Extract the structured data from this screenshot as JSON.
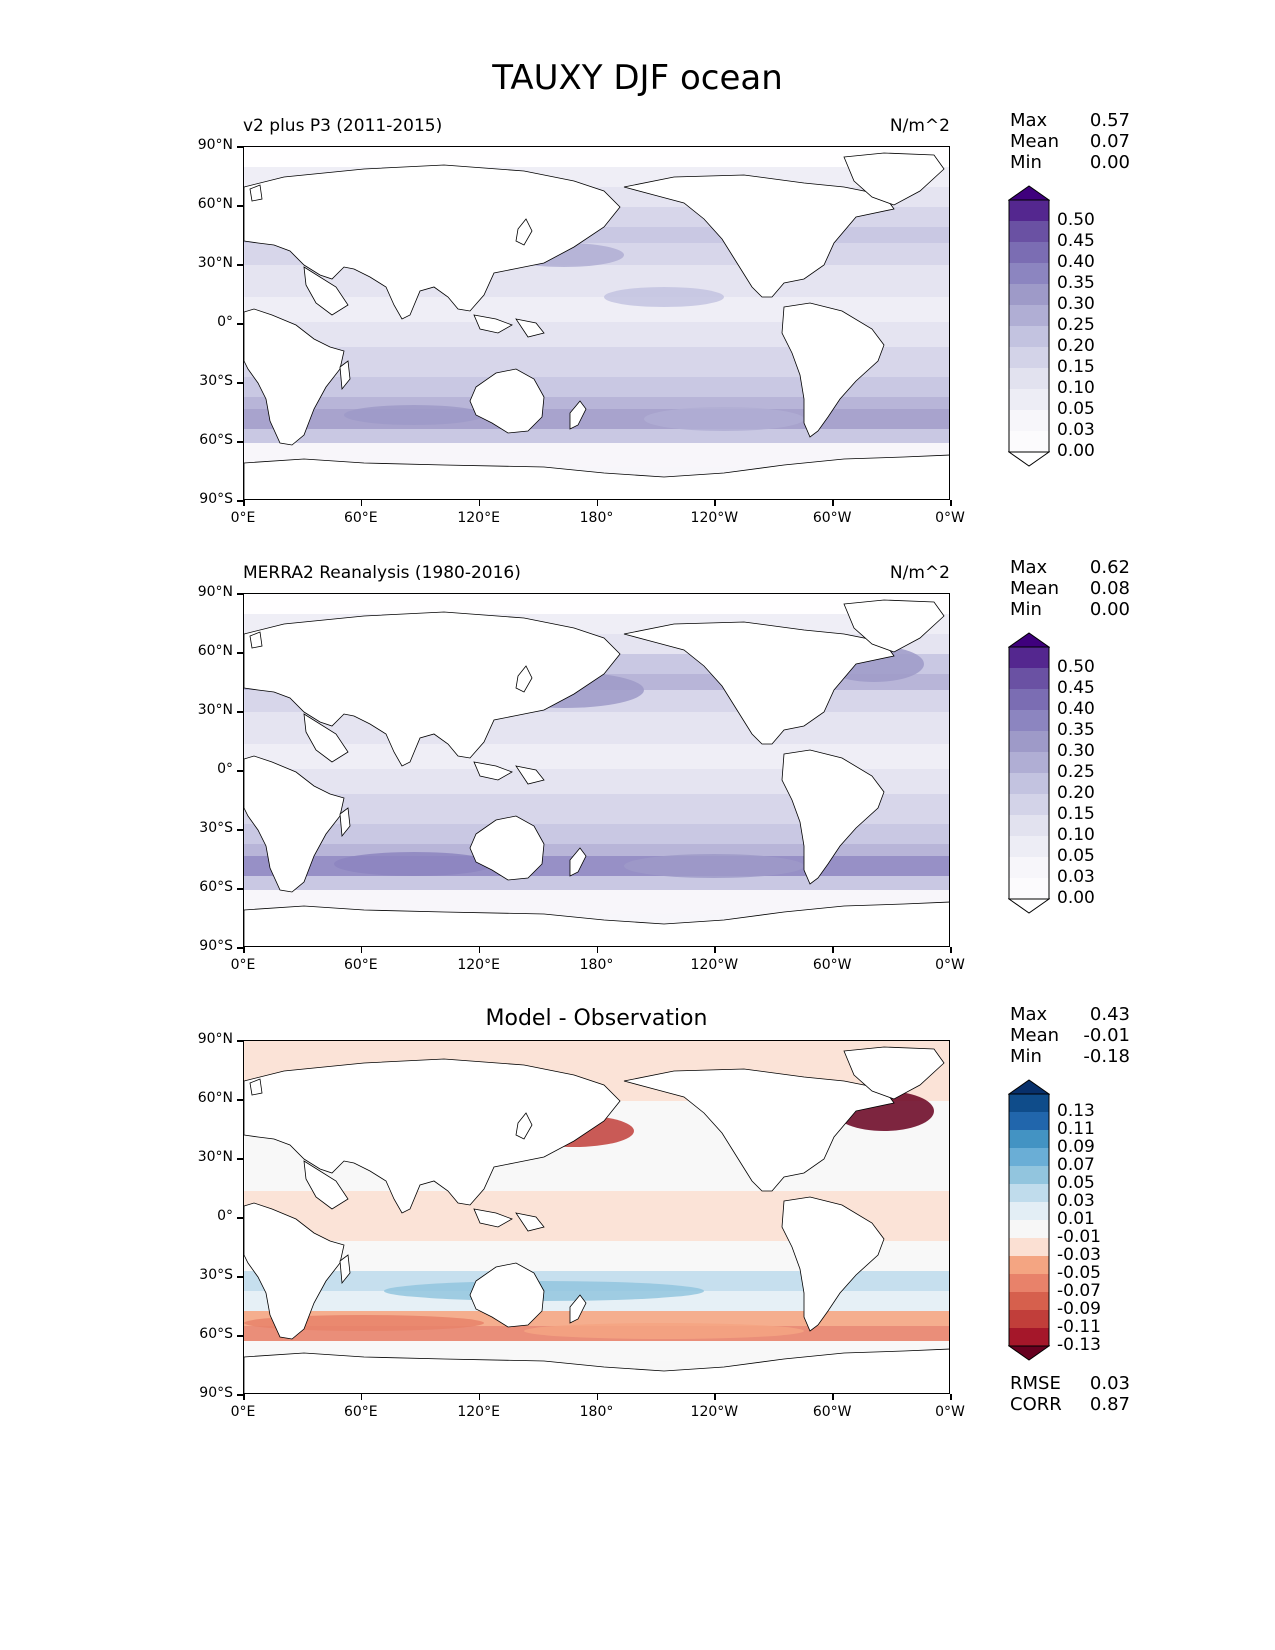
{
  "title": "TAUXY DJF ocean",
  "xticks": [
    "0°E",
    "60°E",
    "120°E",
    "180°",
    "120°W",
    "60°W",
    "0°W"
  ],
  "yticks": [
    "90°N",
    "60°N",
    "30°N",
    "0°",
    "30°S",
    "60°S",
    "90°S"
  ],
  "panels": [
    {
      "id": "test",
      "title_left": "v2 plus P3 (2011-2015)",
      "title_right": "N/m^2",
      "title_center": "",
      "stats": [
        {
          "label": "Max",
          "value": "0.57"
        },
        {
          "label": "Mean",
          "value": "0.07"
        },
        {
          "label": "Min",
          "value": "0.00"
        }
      ],
      "colorbar": {
        "labels": [
          "0.50",
          "0.45",
          "0.40",
          "0.35",
          "0.30",
          "0.25",
          "0.20",
          "0.15",
          "0.10",
          "0.05",
          "0.03",
          "0.00"
        ],
        "colors": [
          "#3f007d",
          "#54278f",
          "#6a51a3",
          "#7b6db3",
          "#8c85c0",
          "#9e9ac8",
          "#b0aed4",
          "#c3c3e0",
          "#d3d3e8",
          "#e2e2ef",
          "#ededf5",
          "#f7f6fa",
          "#fcfbfd",
          "#ffffff"
        ]
      }
    },
    {
      "id": "reference",
      "title_left": "MERRA2 Reanalysis (1980-2016)",
      "title_right": "N/m^2",
      "title_center": "",
      "stats": [
        {
          "label": "Max",
          "value": "0.62"
        },
        {
          "label": "Mean",
          "value": "0.08"
        },
        {
          "label": "Min",
          "value": "0.00"
        }
      ],
      "colorbar": {
        "labels": [
          "0.50",
          "0.45",
          "0.40",
          "0.35",
          "0.30",
          "0.25",
          "0.20",
          "0.15",
          "0.10",
          "0.05",
          "0.03",
          "0.00"
        ],
        "colors": [
          "#3f007d",
          "#54278f",
          "#6a51a3",
          "#7b6db3",
          "#8c85c0",
          "#9e9ac8",
          "#b0aed4",
          "#c3c3e0",
          "#d3d3e8",
          "#e2e2ef",
          "#ededf5",
          "#f7f6fa",
          "#fcfbfd",
          "#ffffff"
        ]
      }
    },
    {
      "id": "diff",
      "title_left": "",
      "title_right": "",
      "title_center": "Model - Observation",
      "stats": [
        {
          "label": "Max",
          "value": "0.43"
        },
        {
          "label": "Mean",
          "value": "-0.01"
        },
        {
          "label": "Min",
          "value": "-0.18"
        }
      ],
      "bottom_stats": [
        {
          "label": "RMSE",
          "value": "0.03"
        },
        {
          "label": "CORR",
          "value": "0.87"
        }
      ],
      "colorbar": {
        "labels": [
          "0.13",
          "0.11",
          "0.09",
          "0.07",
          "0.05",
          "0.03",
          "0.01",
          "-0.01",
          "-0.03",
          "-0.05",
          "-0.07",
          "-0.09",
          "-0.11",
          "-0.13"
        ],
        "colors": [
          "#08306b",
          "#0f4c8a",
          "#2166ac",
          "#4393c3",
          "#6aaed6",
          "#92c5de",
          "#c0dcec",
          "#e3eef5",
          "#f7f7f7",
          "#fbe0d3",
          "#f4a582",
          "#e8826a",
          "#d6604d",
          "#c13e3a",
          "#a5172a",
          "#67001f"
        ]
      }
    }
  ]
}
